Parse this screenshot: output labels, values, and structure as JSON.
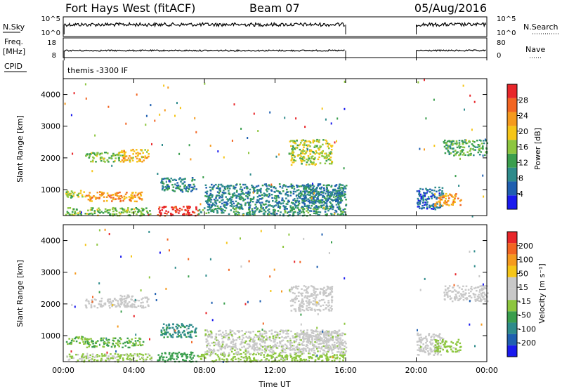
{
  "header": {
    "title": "Fort Hays West (fitACF)",
    "beam": "Beam 07",
    "date": "05/Aug/2016"
  },
  "top_panels": {
    "nsky": {
      "label": "N.Sky",
      "right_label": "N.Search",
      "left_ticks": [
        "10^5",
        "10^0"
      ],
      "right_ticks": [
        "10^5",
        "10^0"
      ]
    },
    "freq": {
      "label_line1": "Freq.",
      "label_line2": "[MHz]",
      "right_label": "Nave",
      "left_ticks": [
        "18",
        "8"
      ],
      "right_ticks": [
        "80",
        "0"
      ]
    },
    "cpid": {
      "label": "CPID",
      "value": "themis -3300 IF"
    }
  },
  "colors": {
    "power": [
      "#1a1aee",
      "#1f5fb0",
      "#2e8b8b",
      "#3a9e4d",
      "#8dc63f",
      "#f5c518",
      "#f59a1e",
      "#f26522",
      "#e8262a"
    ],
    "velocity": [
      "#e8262a",
      "#f26522",
      "#f59a1e",
      "#f5c518",
      "#c8c8c8",
      "#c8c8c8",
      "#8dc63f",
      "#3a9e4d",
      "#2e8b8b",
      "#1f5fb0",
      "#1a1aee"
    ]
  },
  "chart_data": [
    {
      "type": "heatmap",
      "quantity": "power",
      "xlabel": "",
      "ylabel": "Slant Range [km]",
      "x_ticks": [
        "00:00",
        "04:00",
        "08:00",
        "12:00",
        "16:00",
        "20:00",
        "00:00"
      ],
      "y_ticks": [
        1000,
        2000,
        3000,
        4000
      ],
      "xlim_hours": [
        0,
        24
      ],
      "ylim_km": [
        180,
        4500
      ],
      "colorbar": {
        "label": "Power [dB]",
        "ticks": [
          "4",
          "8",
          "12",
          "16",
          "20",
          "24",
          "28"
        ],
        "range": [
          0,
          30
        ]
      },
      "data_gap_hours": [
        16.0,
        20.0
      ],
      "echo_regions": [
        {
          "t0": 0.1,
          "t1": 1.2,
          "r0": 750,
          "r1": 1000,
          "value": 16
        },
        {
          "t0": 1.2,
          "t1": 4.5,
          "r0": 650,
          "r1": 950,
          "value": 22
        },
        {
          "t0": 1.2,
          "t1": 3.5,
          "r0": 1900,
          "r1": 2200,
          "value": 14
        },
        {
          "t0": 3.2,
          "t1": 4.8,
          "r0": 1900,
          "r1": 2300,
          "value": 20
        },
        {
          "t0": 0.1,
          "t1": 5.0,
          "r0": 200,
          "r1": 450,
          "value": 14
        },
        {
          "t0": 5.3,
          "t1": 7.6,
          "r0": 200,
          "r1": 500,
          "value": 28
        },
        {
          "t0": 7.6,
          "t1": 16.0,
          "r0": 200,
          "r1": 450,
          "value": 10
        },
        {
          "t0": 5.5,
          "t1": 7.5,
          "r0": 950,
          "r1": 1400,
          "value": 8
        },
        {
          "t0": 8.0,
          "t1": 16.0,
          "r0": 450,
          "r1": 1200,
          "value": 8
        },
        {
          "t0": 12.8,
          "t1": 15.2,
          "r0": 1800,
          "r1": 2600,
          "value": 16
        },
        {
          "t0": 13.5,
          "t1": 15.8,
          "r0": 600,
          "r1": 1200,
          "value": 8
        },
        {
          "t0": 20.0,
          "t1": 21.5,
          "r0": 400,
          "r1": 1100,
          "value": 6
        },
        {
          "t0": 21.0,
          "t1": 22.5,
          "r0": 500,
          "r1": 900,
          "value": 22
        },
        {
          "t0": 21.5,
          "t1": 24.0,
          "r0": 2100,
          "r1": 2600,
          "value": 12
        }
      ]
    },
    {
      "type": "heatmap",
      "quantity": "velocity",
      "xlabel": "Time UT",
      "ylabel": "Slant Range [km]",
      "x_ticks": [
        "00:00",
        "04:00",
        "08:00",
        "12:00",
        "16:00",
        "20:00",
        "00:00"
      ],
      "y_ticks": [
        1000,
        2000,
        3000,
        4000
      ],
      "xlim_hours": [
        0,
        24
      ],
      "ylim_km": [
        180,
        4500
      ],
      "colorbar": {
        "label": "Velocity [m s⁻¹]",
        "ticks": [
          "200",
          "100",
          "50",
          "15",
          "-15",
          "-50",
          "-100",
          "-200"
        ],
        "range": [
          -250,
          250
        ]
      },
      "data_gap_hours": [
        16.0,
        20.0
      ],
      "echo_regions": [
        {
          "t0": 0.1,
          "t1": 1.2,
          "r0": 750,
          "r1": 1000,
          "value": -60
        },
        {
          "t0": 1.2,
          "t1": 4.5,
          "r0": 650,
          "r1": 950,
          "value": -70
        },
        {
          "t0": 1.2,
          "t1": 3.5,
          "r0": 1900,
          "r1": 2200,
          "value": 0
        },
        {
          "t0": 3.2,
          "t1": 4.8,
          "r0": 1900,
          "r1": 2300,
          "value": 0
        },
        {
          "t0": 0.1,
          "t1": 5.0,
          "r0": 200,
          "r1": 450,
          "value": -30
        },
        {
          "t0": 5.3,
          "t1": 7.6,
          "r0": 200,
          "r1": 500,
          "value": -90
        },
        {
          "t0": 7.6,
          "t1": 16.0,
          "r0": 200,
          "r1": 450,
          "value": -40
        },
        {
          "t0": 5.5,
          "t1": 7.5,
          "r0": 950,
          "r1": 1400,
          "value": -120
        },
        {
          "t0": 8.0,
          "t1": 16.0,
          "r0": 450,
          "r1": 1200,
          "value": -10
        },
        {
          "t0": 12.8,
          "t1": 15.2,
          "r0": 1800,
          "r1": 2600,
          "value": 0
        },
        {
          "t0": 13.5,
          "t1": 15.8,
          "r0": 600,
          "r1": 1200,
          "value": 5
        },
        {
          "t0": 20.0,
          "t1": 21.5,
          "r0": 400,
          "r1": 1100,
          "value": 0
        },
        {
          "t0": 21.0,
          "t1": 22.5,
          "r0": 500,
          "r1": 900,
          "value": -40
        },
        {
          "t0": 21.5,
          "t1": 24.0,
          "r0": 2100,
          "r1": 2600,
          "value": 0
        }
      ]
    }
  ]
}
